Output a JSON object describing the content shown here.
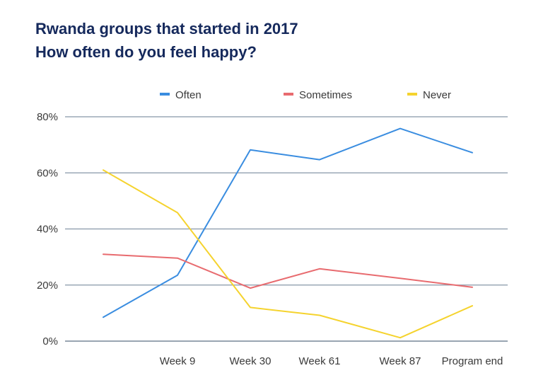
{
  "chart_data": {
    "type": "line",
    "title": "Rwanda groups that started in 2017",
    "subtitle": "How often do you feel happy?",
    "xlabel": "",
    "ylabel": "",
    "categories": [
      "",
      "Week 9",
      "Week 30",
      "Week 61",
      "Week 87",
      "Program end"
    ],
    "ylim": [
      0,
      80
    ],
    "yticks": [
      0,
      20,
      40,
      60,
      80
    ],
    "ytick_labels": [
      "0%",
      "20%",
      "40%",
      "60%",
      "80%"
    ],
    "grid": true,
    "legend_position": "top",
    "series": [
      {
        "name": "Often",
        "color": "#3a8de0",
        "values": [
          8.5,
          23.5,
          68.2,
          64.7,
          75.8,
          67.2
        ]
      },
      {
        "name": "Sometimes",
        "color": "#e86b6f",
        "values": [
          31,
          29.6,
          18.9,
          25.8,
          22.4,
          19.2
        ]
      },
      {
        "name": "Never",
        "color": "#f5d32e",
        "values": [
          61,
          45.8,
          12,
          9.2,
          1.2,
          12.6
        ]
      }
    ]
  }
}
